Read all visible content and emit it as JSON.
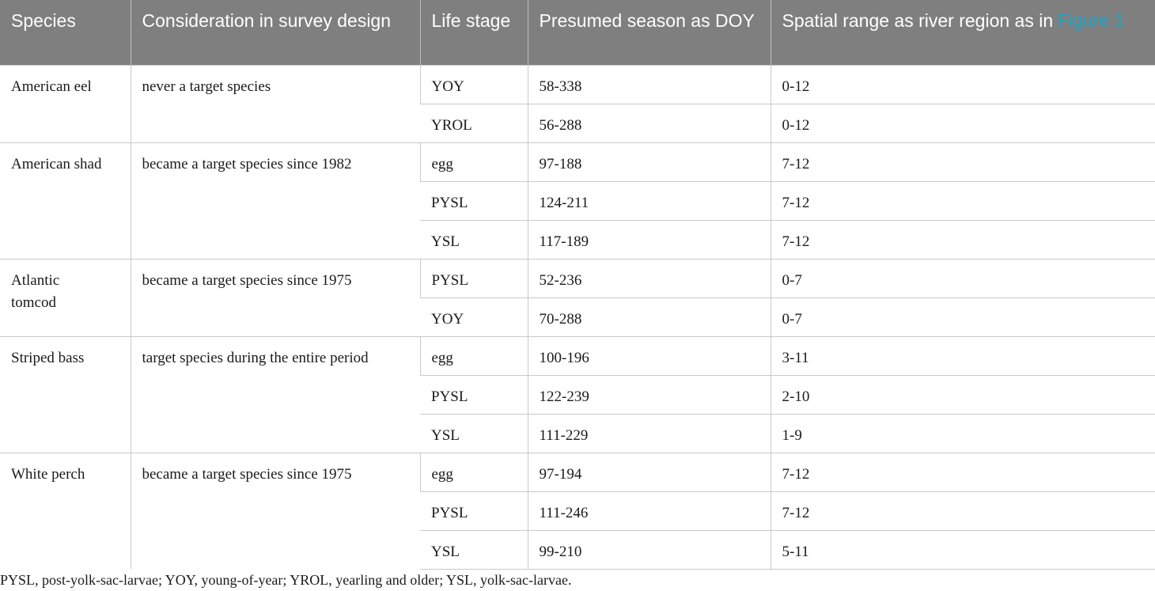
{
  "table": {
    "headers": {
      "species": "Species",
      "consideration": "Consideration in survey design",
      "life_stage": "Life stage",
      "season": "Presumed season as DOY",
      "spatial_prefix": "Spatial range as river region as in ",
      "spatial_link": "Figure 1"
    },
    "groups": [
      {
        "species": "American eel",
        "consideration": "never a target species",
        "rows": [
          {
            "stage": "YOY",
            "season": "58-338",
            "range": "0-12"
          },
          {
            "stage": "YROL",
            "season": "56-288",
            "range": "0-12"
          }
        ]
      },
      {
        "species": "American shad",
        "consideration": "became a target species since 1982",
        "rows": [
          {
            "stage": "egg",
            "season": "97-188",
            "range": "7-12"
          },
          {
            "stage": "PYSL",
            "season": "124-211",
            "range": "7-12"
          },
          {
            "stage": "YSL",
            "season": "117-189",
            "range": "7-12"
          }
        ]
      },
      {
        "species": "Atlantic tomcod",
        "consideration": "became a target species since 1975",
        "rows": [
          {
            "stage": "PYSL",
            "season": "52-236",
            "range": "0-7"
          },
          {
            "stage": "YOY",
            "season": "70-288",
            "range": "0-7"
          }
        ]
      },
      {
        "species": "Striped bass",
        "consideration": "target species during the entire period",
        "rows": [
          {
            "stage": "egg",
            "season": "100-196",
            "range": "3-11"
          },
          {
            "stage": "PYSL",
            "season": "122-239",
            "range": "2-10"
          },
          {
            "stage": "YSL",
            "season": "111-229",
            "range": "1-9"
          }
        ]
      },
      {
        "species": "White perch",
        "consideration": "became a target species since 1975",
        "rows": [
          {
            "stage": "egg",
            "season": "97-194",
            "range": "7-12"
          },
          {
            "stage": "PYSL",
            "season": "111-246",
            "range": "7-12"
          },
          {
            "stage": "YSL",
            "season": "99-210",
            "range": "5-11"
          }
        ]
      }
    ]
  },
  "footnote": "PYSL, post-yolk-sac-larvae; YOY, young-of-year; YROL, yearling and older; YSL, yolk-sac-larvae."
}
